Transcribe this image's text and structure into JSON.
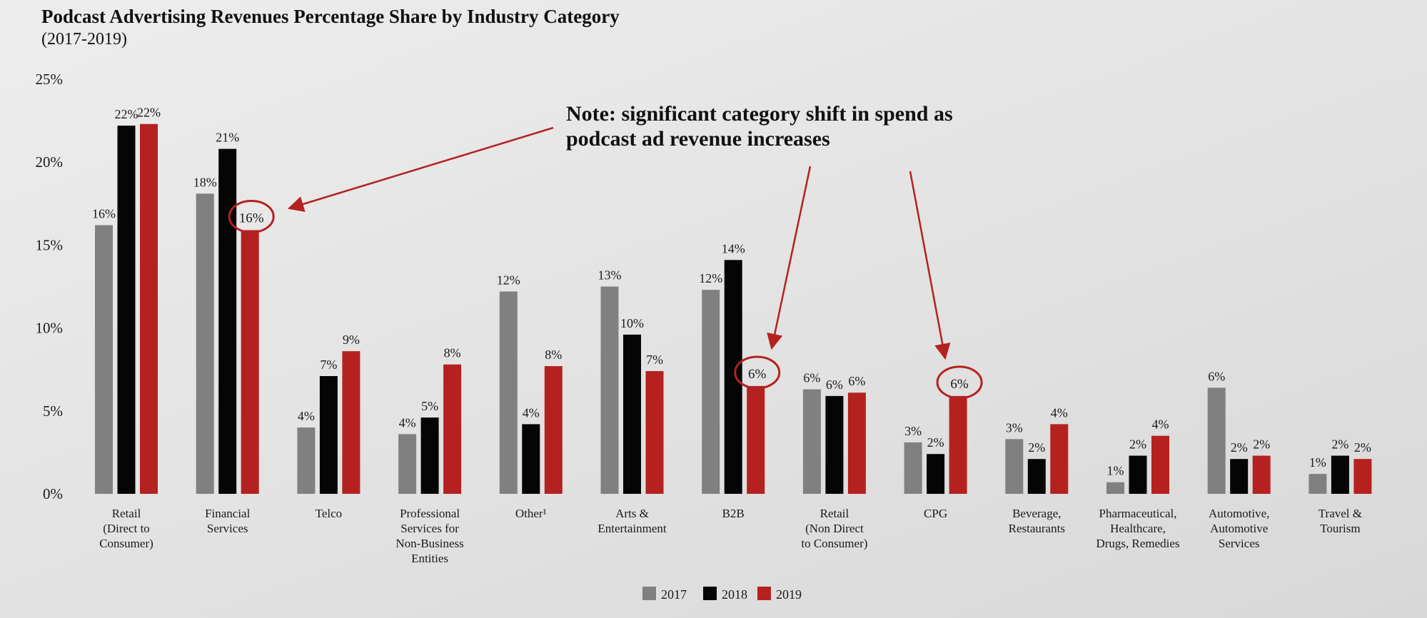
{
  "chart_data": {
    "type": "bar",
    "title": "Podcast Advertising Revenues Percentage Share by Industry Category",
    "subtitle": "(2017-2019)",
    "xlabel": "",
    "ylabel": "",
    "ylim": [
      0,
      25
    ],
    "yticks": [
      "0%",
      "5%",
      "10%",
      "15%",
      "20%",
      "25%"
    ],
    "yticks_values": [
      0,
      5,
      10,
      15,
      20,
      25
    ],
    "categories": [
      [
        "Retail",
        "(Direct to",
        "Consumer)"
      ],
      [
        "Financial",
        "Services"
      ],
      [
        "Telco"
      ],
      [
        "Professional",
        "Services for",
        "Non-Business",
        "Entities"
      ],
      [
        "Other¹"
      ],
      [
        "Arts &",
        "Entertainment"
      ],
      [
        "B2B"
      ],
      [
        "Retail",
        "(Non Direct",
        "to Consumer)"
      ],
      [
        "CPG"
      ],
      [
        "Beverage,",
        "Restaurants"
      ],
      [
        "Pharmaceutical,",
        "Healthcare,",
        "Drugs, Remedies"
      ],
      [
        "Automotive,",
        "Automotive",
        "Services"
      ],
      [
        "Travel &",
        "Tourism"
      ]
    ],
    "series": [
      {
        "name": "2017",
        "color": "#808080",
        "values": [
          16.2,
          18.1,
          4.0,
          3.6,
          12.2,
          12.5,
          12.3,
          6.3,
          3.1,
          3.3,
          0.7,
          6.4,
          1.2
        ],
        "labels": [
          "16%",
          "18%",
          "4%",
          "4%",
          "12%",
          "13%",
          "12%",
          "6%",
          "3%",
          "3%",
          "1%",
          "6%",
          "1%"
        ]
      },
      {
        "name": "2018",
        "color": "#050505",
        "values": [
          22.2,
          20.8,
          7.1,
          4.6,
          4.2,
          9.6,
          14.1,
          5.9,
          2.4,
          2.1,
          2.3,
          2.1,
          2.3
        ],
        "labels": [
          "22%",
          "21%",
          "7%",
          "5%",
          "4%",
          "10%",
          "14%",
          "6%",
          "2%",
          "2%",
          "2%",
          "2%",
          "2%"
        ]
      },
      {
        "name": "2019",
        "color": "#b5211e",
        "values": [
          22.3,
          15.9,
          8.6,
          7.8,
          7.7,
          7.4,
          6.5,
          6.1,
          5.9,
          4.2,
          3.5,
          2.3,
          2.1
        ],
        "labels": [
          "22%",
          "16%",
          "9%",
          "8%",
          "8%",
          "7%",
          "6%",
          "6%",
          "6%",
          "4%",
          "4%",
          "2%",
          "2%"
        ]
      }
    ],
    "highlighted": [
      {
        "series": 2,
        "category": 1
      },
      {
        "series": 2,
        "category": 6
      },
      {
        "series": 2,
        "category": 8
      }
    ],
    "annotation": {
      "lines": [
        "Note: significant category shift in spend as",
        "podcast ad revenue increases"
      ]
    },
    "legend": {
      "position": "bottom-center"
    }
  },
  "colors": {
    "accent": "#b5211e",
    "gray": "#808080",
    "black": "#050505"
  }
}
